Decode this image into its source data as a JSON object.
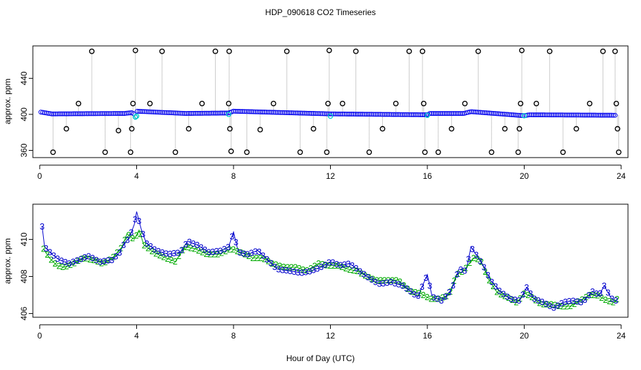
{
  "title": "HDP_090618  CO2 Timeseries",
  "xlabel": "Hour of Day (UTC)",
  "chart_data": [
    {
      "type": "scatter",
      "ylabel": "approx. ppm",
      "xlim": [
        0,
        24
      ],
      "ylim": [
        352,
        476
      ],
      "x_ticks": [
        0,
        4,
        8,
        12,
        16,
        20,
        24
      ],
      "y_ticks": [
        360,
        400,
        440
      ],
      "baseline": [
        [
          0.05,
          402.5
        ],
        [
          0.5,
          400.5
        ],
        [
          3.5,
          401.0
        ],
        [
          3.85,
          402.0
        ],
        [
          3.95,
          397.0
        ],
        [
          4.0,
          403.5
        ],
        [
          6.0,
          401.0
        ],
        [
          7.8,
          401.5
        ],
        [
          8.0,
          403.5
        ],
        [
          12.0,
          400.5
        ],
        [
          16.0,
          399.5
        ],
        [
          16.1,
          401.0
        ],
        [
          17.5,
          401.0
        ],
        [
          17.8,
          403.0
        ],
        [
          20.0,
          398.5
        ],
        [
          20.2,
          399.5
        ],
        [
          23.8,
          399.0
        ]
      ],
      "outliers": [
        [
          0.55,
          358
        ],
        [
          1.1,
          384
        ],
        [
          1.6,
          412
        ],
        [
          2.15,
          470
        ],
        [
          2.7,
          358
        ],
        [
          3.25,
          382
        ],
        [
          3.75,
          358
        ],
        [
          3.8,
          384
        ],
        [
          3.85,
          412
        ],
        [
          3.95,
          471
        ],
        [
          4.55,
          412
        ],
        [
          5.05,
          470
        ],
        [
          5.6,
          358
        ],
        [
          6.15,
          384
        ],
        [
          6.7,
          412
        ],
        [
          7.25,
          470
        ],
        [
          7.8,
          412
        ],
        [
          7.82,
          470
        ],
        [
          7.85,
          384
        ],
        [
          7.9,
          359
        ],
        [
          8.55,
          358
        ],
        [
          9.1,
          383
        ],
        [
          9.65,
          412
        ],
        [
          10.2,
          470
        ],
        [
          10.75,
          358
        ],
        [
          11.3,
          384
        ],
        [
          11.85,
          358
        ],
        [
          11.9,
          412
        ],
        [
          11.95,
          471
        ],
        [
          12.5,
          412
        ],
        [
          13.05,
          470
        ],
        [
          13.6,
          358
        ],
        [
          14.15,
          384
        ],
        [
          14.7,
          412
        ],
        [
          15.25,
          470
        ],
        [
          15.8,
          470
        ],
        [
          15.85,
          412
        ],
        [
          15.9,
          358
        ],
        [
          16.45,
          358
        ],
        [
          17.0,
          384
        ],
        [
          17.55,
          412
        ],
        [
          18.1,
          470
        ],
        [
          18.65,
          358
        ],
        [
          19.2,
          384
        ],
        [
          19.75,
          358
        ],
        [
          19.8,
          384
        ],
        [
          19.85,
          412
        ],
        [
          19.9,
          471
        ],
        [
          20.5,
          412
        ],
        [
          21.05,
          470
        ],
        [
          21.6,
          358
        ],
        [
          22.15,
          384
        ],
        [
          22.7,
          412
        ],
        [
          23.25,
          470
        ],
        [
          23.75,
          470
        ],
        [
          23.8,
          412
        ],
        [
          23.85,
          384
        ],
        [
          23.9,
          358
        ]
      ],
      "highlight_points": [
        [
          3.95,
          397.0
        ],
        [
          4.0,
          398.0
        ],
        [
          7.8,
          400.0
        ],
        [
          12.0,
          398.0
        ],
        [
          16.0,
          399.0
        ],
        [
          20.0,
          398.5
        ]
      ],
      "colors": {
        "baseline": "#0000ee",
        "outlier": "#000000",
        "highlight": "#00cccc",
        "connector": "#999999"
      }
    },
    {
      "type": "line",
      "ylabel": "approx. ppm",
      "xlim": [
        0,
        24
      ],
      "ylim": [
        405.8,
        411.9
      ],
      "x_ticks": [
        0,
        4,
        8,
        12,
        16,
        20,
        24
      ],
      "y_ticks": [
        406,
        408,
        410
      ],
      "series": [
        {
          "marker": "3",
          "color": "#0000cc",
          "points": [
            [
              0.1,
              410.7
            ],
            [
              0.2,
              409.6
            ],
            [
              0.5,
              409.2
            ],
            [
              0.8,
              408.9
            ],
            [
              1.2,
              408.7
            ],
            [
              1.6,
              408.9
            ],
            [
              2.0,
              409.1
            ],
            [
              2.5,
              408.8
            ],
            [
              3.0,
              408.9
            ],
            [
              3.3,
              409.3
            ],
            [
              3.5,
              409.8
            ],
            [
              3.7,
              410.1
            ],
            [
              3.9,
              410.8
            ],
            [
              4.0,
              411.5
            ],
            [
              4.2,
              410.5
            ],
            [
              4.4,
              409.8
            ],
            [
              4.8,
              409.4
            ],
            [
              5.3,
              409.2
            ],
            [
              5.8,
              409.3
            ],
            [
              6.1,
              409.9
            ],
            [
              6.5,
              409.7
            ],
            [
              7.0,
              409.3
            ],
            [
              7.5,
              409.4
            ],
            [
              7.8,
              409.6
            ],
            [
              8.0,
              410.4
            ],
            [
              8.2,
              409.3
            ],
            [
              8.6,
              409.2
            ],
            [
              9.0,
              409.4
            ],
            [
              9.4,
              408.9
            ],
            [
              9.8,
              408.4
            ],
            [
              10.3,
              408.3
            ],
            [
              10.8,
              408.2
            ],
            [
              11.2,
              408.3
            ],
            [
              11.6,
              408.5
            ],
            [
              12.0,
              408.8
            ],
            [
              12.4,
              408.6
            ],
            [
              12.8,
              408.7
            ],
            [
              13.2,
              408.3
            ],
            [
              13.6,
              407.9
            ],
            [
              14.0,
              407.6
            ],
            [
              14.5,
              407.7
            ],
            [
              15.0,
              407.5
            ],
            [
              15.2,
              407.3
            ],
            [
              15.6,
              406.9
            ],
            [
              16.0,
              408.1
            ],
            [
              16.2,
              406.9
            ],
            [
              16.6,
              406.7
            ],
            [
              17.0,
              407.3
            ],
            [
              17.3,
              408.4
            ],
            [
              17.6,
              408.3
            ],
            [
              17.8,
              409.6
            ],
            [
              18.0,
              409.2
            ],
            [
              18.3,
              408.6
            ],
            [
              18.6,
              407.8
            ],
            [
              19.0,
              407.2
            ],
            [
              19.4,
              406.8
            ],
            [
              19.8,
              406.7
            ],
            [
              20.1,
              407.4
            ],
            [
              20.4,
              406.8
            ],
            [
              20.8,
              406.6
            ],
            [
              21.2,
              406.3
            ],
            [
              21.6,
              406.6
            ],
            [
              22.0,
              406.7
            ],
            [
              22.4,
              406.6
            ],
            [
              22.8,
              407.2
            ],
            [
              23.1,
              407.0
            ],
            [
              23.3,
              407.5
            ],
            [
              23.6,
              406.8
            ],
            [
              23.8,
              406.7
            ]
          ]
        },
        {
          "marker": "2",
          "color": "#00aa00",
          "points": [
            [
              0.15,
              409.5
            ],
            [
              0.4,
              409.0
            ],
            [
              0.7,
              408.6
            ],
            [
              1.0,
              408.5
            ],
            [
              1.4,
              408.7
            ],
            [
              1.8,
              409.0
            ],
            [
              2.2,
              408.9
            ],
            [
              2.6,
              408.7
            ],
            [
              3.0,
              409.0
            ],
            [
              3.4,
              409.6
            ],
            [
              3.6,
              410.3
            ],
            [
              3.9,
              410.0
            ],
            [
              4.1,
              410.5
            ],
            [
              4.3,
              409.7
            ],
            [
              4.7,
              409.3
            ],
            [
              5.2,
              409.0
            ],
            [
              5.6,
              408.8
            ],
            [
              6.0,
              409.6
            ],
            [
              6.4,
              409.5
            ],
            [
              6.9,
              409.2
            ],
            [
              7.4,
              409.2
            ],
            [
              7.9,
              409.5
            ],
            [
              8.3,
              409.3
            ],
            [
              8.8,
              409.0
            ],
            [
              9.2,
              409.0
            ],
            [
              9.6,
              408.7
            ],
            [
              10.1,
              408.5
            ],
            [
              10.6,
              408.5
            ],
            [
              11.0,
              408.3
            ],
            [
              11.5,
              408.7
            ],
            [
              11.9,
              408.6
            ],
            [
              12.3,
              408.6
            ],
            [
              12.7,
              408.4
            ],
            [
              13.1,
              408.3
            ],
            [
              13.5,
              408.0
            ],
            [
              13.9,
              407.8
            ],
            [
              14.4,
              407.8
            ],
            [
              14.8,
              407.8
            ],
            [
              15.3,
              407.2
            ],
            [
              15.7,
              407.1
            ],
            [
              16.1,
              406.8
            ],
            [
              16.5,
              406.8
            ],
            [
              16.9,
              407.0
            ],
            [
              17.2,
              408.1
            ],
            [
              17.5,
              408.3
            ],
            [
              17.9,
              409.0
            ],
            [
              18.2,
              408.9
            ],
            [
              18.5,
              407.9
            ],
            [
              18.9,
              407.1
            ],
            [
              19.3,
              406.9
            ],
            [
              19.7,
              406.6
            ],
            [
              20.0,
              407.1
            ],
            [
              20.3,
              406.9
            ],
            [
              20.7,
              406.5
            ],
            [
              21.1,
              406.5
            ],
            [
              21.5,
              406.4
            ],
            [
              21.9,
              406.4
            ],
            [
              22.3,
              406.7
            ],
            [
              22.7,
              407.0
            ],
            [
              23.0,
              407.0
            ],
            [
              23.4,
              406.7
            ],
            [
              23.7,
              406.6
            ],
            [
              23.85,
              406.8
            ]
          ]
        }
      ]
    }
  ]
}
